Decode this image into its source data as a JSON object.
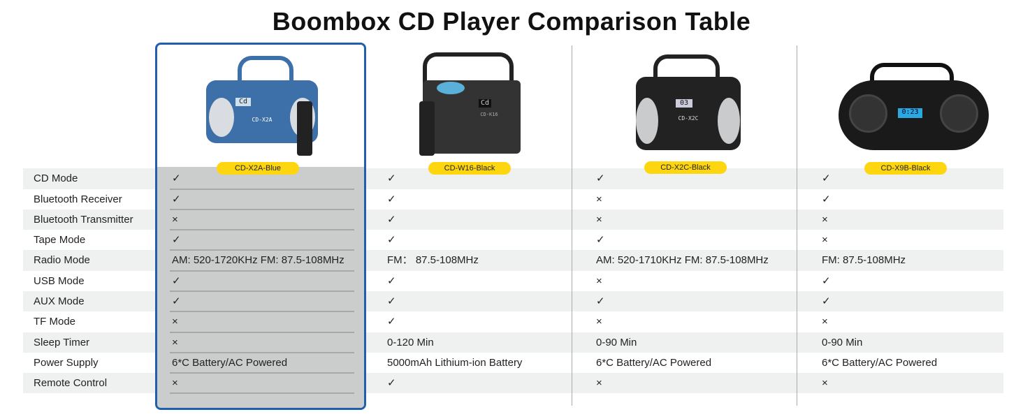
{
  "title": "Boombox CD Player Comparison Table",
  "products": [
    {
      "name": "CD-X2A-Blue",
      "color": "#3d6fa8",
      "lcd": "Cd",
      "model_label": "CD-X2A"
    },
    {
      "name": "CD-W16-Black",
      "color": "#333333",
      "lcd": "Cd",
      "model_label": "CD-K16"
    },
    {
      "name": "CD-X2C-Black",
      "color": "#222222",
      "lcd": "03",
      "model_label": "CD-X2C"
    },
    {
      "name": "CD-X9B-Black",
      "color": "#1a1a1a",
      "lcd": "0:23"
    }
  ],
  "rows": [
    {
      "label": "CD Mode",
      "values": [
        "✓",
        "✓",
        "✓",
        "✓"
      ]
    },
    {
      "label": "Bluetooth Receiver",
      "values": [
        "✓",
        "✓",
        "×",
        "✓"
      ]
    },
    {
      "label": "Bluetooth Transmitter",
      "values": [
        "×",
        "✓",
        "×",
        "×"
      ]
    },
    {
      "label": "Tape Mode",
      "values": [
        "✓",
        "✓",
        "✓",
        "×"
      ]
    },
    {
      "label": "Radio Mode",
      "values": [
        "AM: 520-1720KHz FM: 87.5-108MHz",
        "FM： 87.5-108MHz",
        "AM: 520-1710KHz  FM: 87.5-108MHz",
        "FM: 87.5-108MHz"
      ]
    },
    {
      "label": "USB Mode",
      "values": [
        "✓",
        "✓",
        "×",
        "✓"
      ]
    },
    {
      "label": "AUX Mode",
      "values": [
        "✓",
        "✓",
        "✓",
        "✓"
      ]
    },
    {
      "label": "TF Mode",
      "values": [
        "×",
        "✓",
        "×",
        "×"
      ]
    },
    {
      "label": "Sleep Timer",
      "values": [
        "×",
        "0-120 Min",
        "0-90 Min",
        "0-90 Min"
      ]
    },
    {
      "label": "Power Supply",
      "values": [
        "6*C Battery/AC Powered",
        "5000mAh Lithium-ion Battery",
        "6*C Battery/AC Powered",
        "6*C Battery/AC Powered"
      ]
    },
    {
      "label": "Remote Control",
      "values": [
        "×",
        "✓",
        "×",
        "×"
      ]
    }
  ],
  "selected_border_color": "#1f5fae",
  "badge_color": "#fdd60f"
}
